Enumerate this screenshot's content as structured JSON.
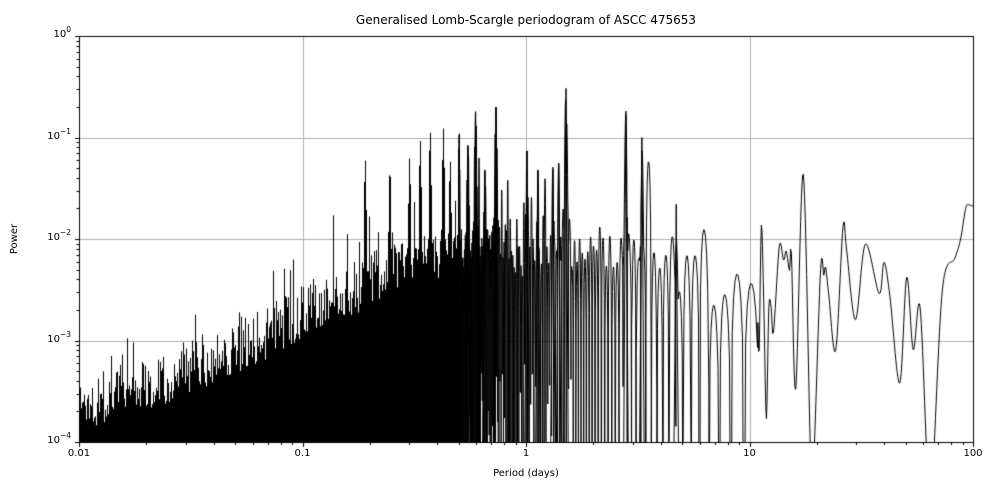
{
  "chart_data": {
    "type": "line",
    "title": "Generalised Lomb-Scargle periodogram of ASCC 475653",
    "xlabel": "Period (days)",
    "ylabel": "Power",
    "x_scale": "log",
    "y_scale": "log",
    "xlim": [
      0.01,
      100
    ],
    "ylim": [
      0.0001,
      1
    ],
    "grid": true,
    "legend": null,
    "line_color": "#000000",
    "grid_color": "#b0b0b0",
    "axis_color": "#000000",
    "background_color": "#ffffff",
    "x_ticks": [
      {
        "value": 0.01,
        "label": "0.01"
      },
      {
        "value": 0.1,
        "label": "0.1"
      },
      {
        "value": 1,
        "label": "1"
      },
      {
        "value": 10,
        "label": "10"
      },
      {
        "value": 100,
        "label": "100"
      }
    ],
    "y_ticks": [
      {
        "value": 1,
        "mantissa": "10",
        "exp": "0"
      },
      {
        "value": 0.1,
        "mantissa": "10",
        "exp": "−1"
      },
      {
        "value": 0.01,
        "mantissa": "10",
        "exp": "−2"
      },
      {
        "value": 0.001,
        "mantissa": "10",
        "exp": "−3"
      },
      {
        "value": 0.0001,
        "mantissa": "10",
        "exp": "−4"
      }
    ],
    "minor_ticks": true,
    "series_model": {
      "sampling": "uniform-in-frequency",
      "frequency_null_spacing_per_day": 0.0154,
      "seed": 1337,
      "noise_envelope_nodes": [
        [
          0.01,
          0.00023
        ],
        [
          0.016,
          0.00033
        ],
        [
          0.025,
          0.00045
        ],
        [
          0.04,
          0.0007
        ],
        [
          0.063,
          0.0011
        ],
        [
          0.1,
          0.0019
        ],
        [
          0.16,
          0.0032
        ],
        [
          0.25,
          0.005
        ],
        [
          0.4,
          0.0065
        ],
        [
          0.63,
          0.0075
        ],
        [
          1.0,
          0.0085
        ],
        [
          1.6,
          0.009
        ],
        [
          2.5,
          0.008
        ],
        [
          4.0,
          0.0065
        ],
        [
          6.3,
          0.0045
        ],
        [
          9.0,
          0.003
        ],
        [
          10.9,
          0.0025
        ]
      ],
      "main_peaks": [
        [
          0.19,
          0.061
        ],
        [
          0.245,
          0.051
        ],
        [
          0.3,
          0.063
        ],
        [
          0.335,
          0.094
        ],
        [
          0.371,
          0.117
        ],
        [
          0.425,
          0.123
        ],
        [
          0.456,
          0.06
        ],
        [
          0.5,
          0.117
        ],
        [
          0.55,
          0.084
        ],
        [
          0.595,
          0.18
        ],
        [
          0.655,
          0.048
        ],
        [
          0.734,
          0.2
        ],
        [
          1.01,
          0.074
        ],
        [
          1.13,
          0.048
        ],
        [
          1.32,
          0.051
        ],
        [
          1.4,
          0.056
        ],
        [
          1.51,
          0.305
        ],
        [
          2.8,
          0.182
        ],
        [
          3.3,
          0.1
        ],
        [
          4.7,
          0.022
        ]
      ],
      "smooth_tail_points": [
        [
          10.9,
          0.0015
        ],
        [
          11.05,
          0.0008
        ],
        [
          11.3,
          0.0137
        ],
        [
          11.6,
          0.002
        ],
        [
          11.9,
          0.00017
        ],
        [
          12.2,
          0.0021
        ],
        [
          12.5,
          0.0021
        ],
        [
          12.8,
          0.0012
        ],
        [
          13.6,
          0.0085
        ],
        [
          14.2,
          0.0062
        ],
        [
          14.6,
          0.0076
        ],
        [
          15.1,
          0.0049
        ],
        [
          15.4,
          0.0072
        ],
        [
          16.1,
          0.00033
        ],
        [
          17.4,
          0.0435
        ],
        [
          18.8,
          6e-05
        ],
        [
          19.4,
          7e-05
        ],
        [
          20.8,
          0.005
        ],
        [
          21.5,
          0.0044
        ],
        [
          21.9,
          0.0053
        ],
        [
          22.6,
          0.0029
        ],
        [
          24.3,
          0.0008
        ],
        [
          26.2,
          0.0131
        ],
        [
          27.2,
          0.0078
        ],
        [
          29.8,
          0.0016
        ],
        [
          33,
          0.0089
        ],
        [
          38,
          0.0029
        ],
        [
          40,
          0.0059
        ],
        [
          42.5,
          0.0027
        ],
        [
          47,
          0.00038
        ],
        [
          50.5,
          0.0042
        ],
        [
          54,
          0.00081
        ],
        [
          58,
          0.0021
        ],
        [
          63,
          4e-05
        ],
        [
          66,
          5e-05
        ],
        [
          73,
          0.0032
        ],
        [
          83,
          0.0065
        ],
        [
          88,
          0.01
        ],
        [
          93,
          0.0205
        ],
        [
          97,
          0.0215
        ],
        [
          100,
          0.021
        ]
      ]
    }
  }
}
